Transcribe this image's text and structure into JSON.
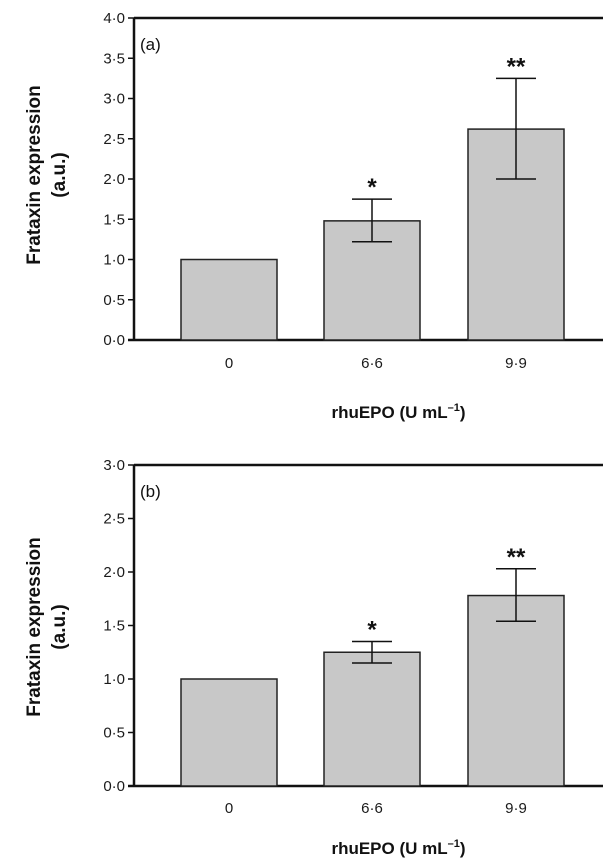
{
  "chart_data": [
    {
      "type": "bar",
      "panel_label": "(a)",
      "categories": [
        "0",
        "6·6",
        "9·9"
      ],
      "values": [
        1.0,
        1.48,
        2.62
      ],
      "error_low": [
        1.0,
        1.22,
        2.0
      ],
      "error_high": [
        1.0,
        1.75,
        3.25
      ],
      "significance": [
        "",
        "*",
        "**"
      ],
      "ylabel_line1": "Frataxin expression",
      "ylabel_line2": "(a.u.)",
      "xlabel": "rhuEPO (U mL",
      "xlabel_sup": "–1",
      "xlabel_close": ")",
      "ylim": [
        0,
        4
      ],
      "yticks": [
        "0·0",
        "0·5",
        "1·0",
        "1·5",
        "2·0",
        "2·5",
        "3·0",
        "3·5",
        "4·0"
      ],
      "bar_color": "#c8c8c8",
      "grid": false
    },
    {
      "type": "bar",
      "panel_label": "(b)",
      "categories": [
        "0",
        "6·6",
        "9·9"
      ],
      "values": [
        1.0,
        1.25,
        1.78
      ],
      "error_low": [
        1.0,
        1.15,
        1.54
      ],
      "error_high": [
        1.0,
        1.35,
        2.03
      ],
      "significance": [
        "",
        "*",
        "**"
      ],
      "ylabel_line1": "Frataxin expression",
      "ylabel_line2": "(a.u.)",
      "xlabel": "rhuEPO (U mL",
      "xlabel_sup": "–1",
      "xlabel_close": ")",
      "ylim": [
        0,
        3
      ],
      "yticks": [
        "0·0",
        "0·5",
        "1·0",
        "1·5",
        "2·0",
        "2·5",
        "3·0"
      ],
      "bar_color": "#c8c8c8",
      "grid": false
    }
  ]
}
